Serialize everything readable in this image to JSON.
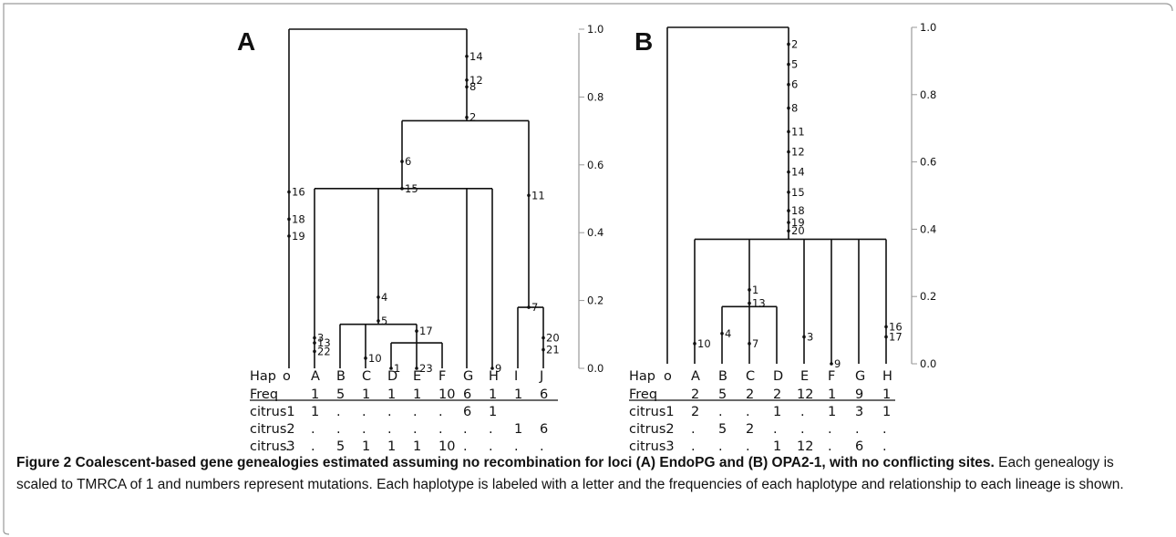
{
  "caption": {
    "bold": "Figure 2 Coalescent-based gene genealogies estimated assuming no recombination for loci (A) EndoPG and (B) OPA2-1, with no conflicting sites.",
    "text": " Each genealogy is scaled to TMRCA of 1 and numbers represent mutations. Each haplotype is labeled with a letter and the frequencies of each haplotype and relationship to each lineage is shown."
  },
  "panels": [
    {
      "label": "A",
      "scale": [
        "1.0",
        "0.8",
        "0.6",
        "0.4",
        "0.2",
        "0.0"
      ],
      "tree": {
        "root": 1.0,
        "tips": [
          "o",
          "A",
          "B",
          "C",
          "D",
          "E",
          "F",
          "G",
          "H",
          "I",
          "J"
        ],
        "nodes": [
          {
            "h": 0.73,
            "children": [
              3,
              4
            ]
          },
          {
            "h": 0.53,
            "children": [
              1,
              7,
              6,
              8
            ]
          },
          {
            "h": 0.18,
            "children": [
              9,
              10
            ]
          },
          {
            "h": 0.13,
            "children": [
              2,
              3,
              4,
              5
            ]
          },
          {
            "h": 0.09,
            "children": [
              4,
              5,
              6
            ]
          }
        ],
        "mutations": [
          {
            "x": "o",
            "h": 0.52,
            "label": "16"
          },
          {
            "x": "o",
            "h": 0.44,
            "label": "18"
          },
          {
            "x": "o",
            "h": 0.39,
            "label": "19"
          },
          {
            "x": "root",
            "h": 0.92,
            "label": "14"
          },
          {
            "x": "root",
            "h": 0.85,
            "label": "12"
          },
          {
            "x": "root",
            "h": 0.83,
            "label": "8"
          },
          {
            "x": "root",
            "h": 0.74,
            "label": "2"
          },
          {
            "x": "n2",
            "h": 0.61,
            "label": "6"
          },
          {
            "x": "n2",
            "h": 0.53,
            "label": "15"
          },
          {
            "x": "A",
            "h": 0.09,
            "label": "3"
          },
          {
            "x": "A",
            "h": 0.075,
            "label": "13"
          },
          {
            "x": "A",
            "h": 0.05,
            "label": "22"
          },
          {
            "x": "D_stem",
            "h": 0.21,
            "label": "4"
          },
          {
            "x": "D_stem",
            "h": 0.14,
            "label": "5"
          },
          {
            "x": "C",
            "h": 0.03,
            "label": "10"
          },
          {
            "x": "D",
            "h": 0.0,
            "label": "1"
          },
          {
            "x": "E_stem",
            "h": 0.11,
            "label": "17"
          },
          {
            "x": "E",
            "h": 0.0,
            "label": "23"
          },
          {
            "x": "H",
            "h": 0.0,
            "label": "9"
          },
          {
            "x": "IJ",
            "h": 0.51,
            "label": "11"
          },
          {
            "x": "IJ",
            "h": 0.18,
            "label": "7"
          },
          {
            "x": "J",
            "h": 0.09,
            "label": "20"
          },
          {
            "x": "J",
            "h": 0.055,
            "label": "21"
          }
        ]
      },
      "table": {
        "rows": [
          {
            "label": "Hap",
            "cells": [
              "o",
              "A",
              "B",
              "C",
              "D",
              "E",
              "F",
              "G",
              "H",
              "I",
              "J"
            ]
          },
          {
            "label": "Freq",
            "cells": [
              "",
              "1",
              "5",
              "1",
              "1",
              "1",
              "10",
              "6",
              "1",
              "1",
              "6"
            ]
          },
          {
            "label": "citrus1",
            "cells": [
              "",
              "1",
              ".",
              ".",
              ".",
              ".",
              ".",
              "6",
              "1",
              "",
              ""
            ]
          },
          {
            "label": "citrus2",
            "cells": [
              "",
              ".",
              ".",
              ".",
              ".",
              ".",
              ".",
              ".",
              ".",
              "1",
              "6"
            ]
          },
          {
            "label": "citrus3",
            "cells": [
              ".",
              ".",
              "5",
              "1",
              "1",
              "1",
              "10",
              ".",
              ".",
              ".",
              "."
            ]
          }
        ]
      }
    },
    {
      "label": "B",
      "scale": [
        "1.0",
        "0.8",
        "0.6",
        "0.4",
        "0.2",
        "0.0"
      ],
      "tree": {
        "root": 1.0,
        "tips": [
          "o",
          "A",
          "B",
          "C",
          "D",
          "E",
          "F",
          "G",
          "H"
        ],
        "mutations": [
          {
            "x": "root",
            "h": 0.95,
            "label": "2"
          },
          {
            "x": "root",
            "h": 0.89,
            "label": "5"
          },
          {
            "x": "root",
            "h": 0.83,
            "label": "6"
          },
          {
            "x": "root",
            "h": 0.76,
            "label": "8"
          },
          {
            "x": "root",
            "h": 0.69,
            "label": "11"
          },
          {
            "x": "root",
            "h": 0.63,
            "label": "12"
          },
          {
            "x": "root",
            "h": 0.57,
            "label": "14"
          },
          {
            "x": "root",
            "h": 0.51,
            "label": "15"
          },
          {
            "x": "root",
            "h": 0.455,
            "label": "18"
          },
          {
            "x": "root",
            "h": 0.42,
            "label": "19"
          },
          {
            "x": "root",
            "h": 0.395,
            "label": "20"
          },
          {
            "x": "A",
            "h": 0.06,
            "label": "10"
          },
          {
            "x": "BCD",
            "h": 0.22,
            "label": "1"
          },
          {
            "x": "BCD",
            "h": 0.18,
            "label": "13"
          },
          {
            "x": "B",
            "h": 0.09,
            "label": "4"
          },
          {
            "x": "C",
            "h": 0.06,
            "label": "7"
          },
          {
            "x": "E",
            "h": 0.08,
            "label": "3"
          },
          {
            "x": "F",
            "h": 0.0,
            "label": "9"
          },
          {
            "x": "H",
            "h": 0.11,
            "label": "16"
          },
          {
            "x": "H",
            "h": 0.08,
            "label": "17"
          }
        ]
      },
      "table": {
        "rows": [
          {
            "label": "Hap",
            "cells": [
              "o",
              "A",
              "B",
              "C",
              "D",
              "E",
              "F",
              "G",
              "H"
            ]
          },
          {
            "label": "Freq",
            "cells": [
              "",
              "2",
              "5",
              "2",
              "2",
              "12",
              "1",
              "9",
              "1"
            ]
          },
          {
            "label": "citrus1",
            "cells": [
              "",
              "2",
              ".",
              ".",
              "1",
              ".",
              "1",
              "3",
              "1"
            ]
          },
          {
            "label": "citrus2",
            "cells": [
              "",
              ".",
              "5",
              "2",
              ".",
              ".",
              ".",
              ".",
              "."
            ]
          },
          {
            "label": "citrus3",
            "cells": [
              "",
              ".",
              ".",
              ".",
              "1",
              "12",
              ".",
              "6",
              "."
            ]
          }
        ]
      }
    }
  ]
}
